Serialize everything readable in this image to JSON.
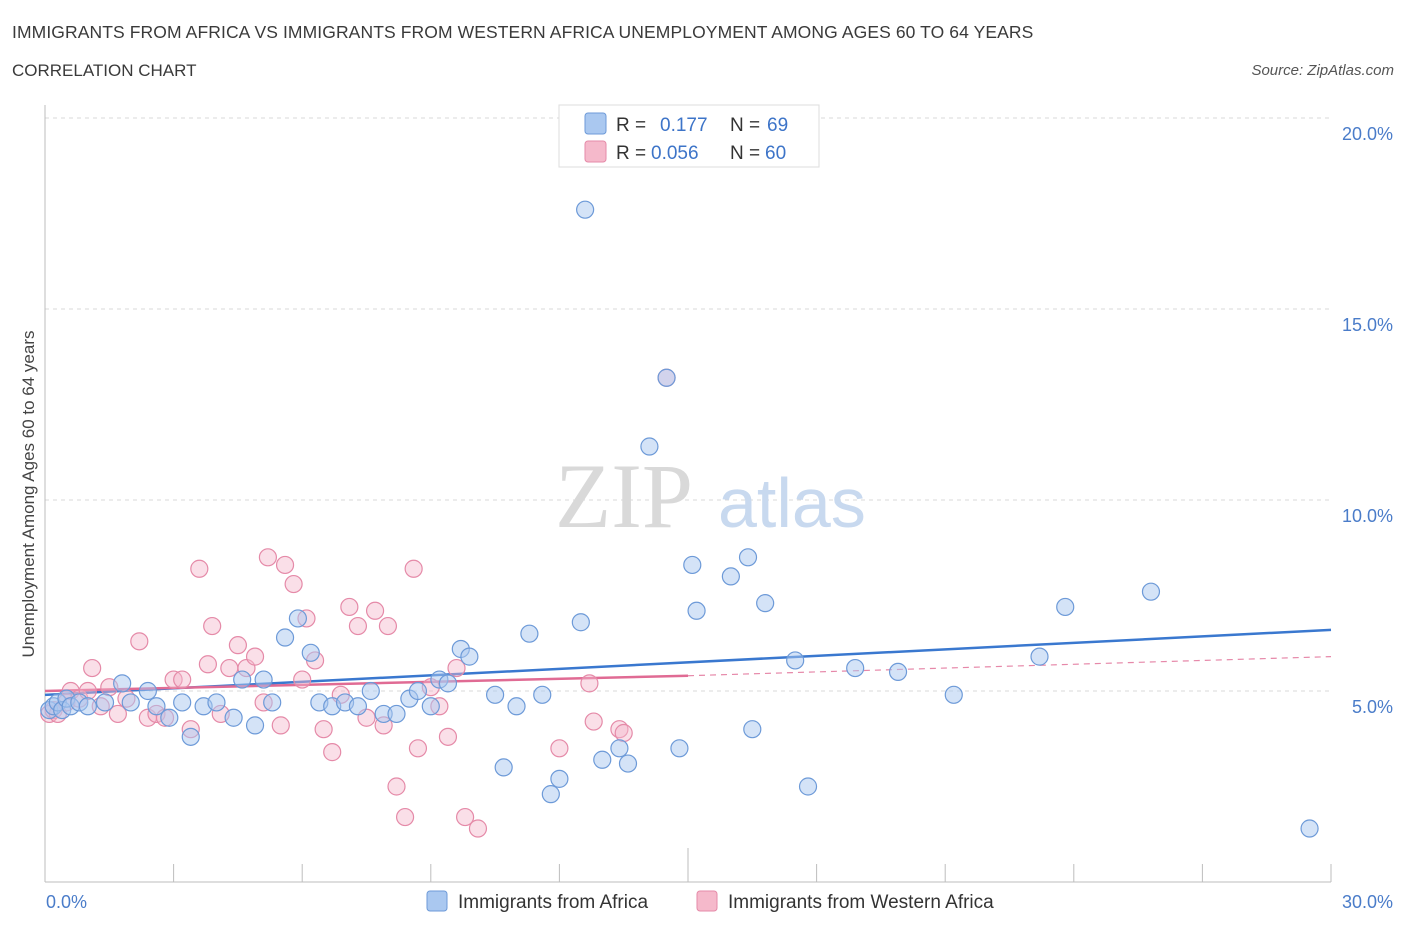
{
  "header": {
    "title": "IMMIGRANTS FROM AFRICA VS IMMIGRANTS FROM WESTERN AFRICA UNEMPLOYMENT AMONG AGES 60 TO 64 YEARS",
    "subtitle": "CORRELATION CHART",
    "source": "Source: ZipAtlas.com"
  },
  "watermark": {
    "zip": "ZIP",
    "atlas": "atlas"
  },
  "legend": {
    "r_label": "R =",
    "n_label": "N =",
    "rows": [
      {
        "r": "0.177",
        "n": "69"
      },
      {
        "r": "0.056",
        "n": "60"
      }
    ]
  },
  "bottom_legend": {
    "series1": "Immigrants from Africa",
    "series2": "Immigrants from Western Africa"
  },
  "colors": {
    "series1_fill": "#aac8f0",
    "series1_stroke": "#6d9ad8",
    "series1_line": "#3a78cf",
    "series2_fill": "#f5b9cb",
    "series2_stroke": "#e58aa8",
    "series2_line": "#e06b94",
    "tick_text": "#4a7cc9",
    "grid": "#d8d8d8"
  },
  "chart_data": {
    "type": "scatter",
    "xlabel": "",
    "ylabel": "Unemployment Among Ages 60 to 64 years",
    "xlim": [
      0,
      30
    ],
    "ylim": [
      0,
      20
    ],
    "x_tick_labels": [
      "0.0%",
      "30.0%"
    ],
    "y_ticks": [
      5,
      10,
      15,
      20
    ],
    "y_tick_labels": [
      "5.0%",
      "10.0%",
      "15.0%",
      "20.0%"
    ],
    "grid": "horizontal dashed",
    "legend_position": "top-center",
    "series": [
      {
        "name": "Immigrants from Africa",
        "r": 0.177,
        "n": 69,
        "trend": {
          "x": [
            0,
            30
          ],
          "y": [
            4.9,
            6.6
          ]
        },
        "points": [
          [
            0.1,
            4.5
          ],
          [
            0.2,
            4.6
          ],
          [
            0.3,
            4.7
          ],
          [
            0.4,
            4.5
          ],
          [
            0.5,
            4.8
          ],
          [
            0.6,
            4.6
          ],
          [
            0.8,
            4.7
          ],
          [
            1.0,
            4.6
          ],
          [
            1.4,
            4.7
          ],
          [
            1.8,
            5.2
          ],
          [
            2.0,
            4.7
          ],
          [
            2.4,
            5.0
          ],
          [
            2.6,
            4.6
          ],
          [
            2.9,
            4.3
          ],
          [
            3.2,
            4.7
          ],
          [
            3.4,
            3.8
          ],
          [
            3.7,
            4.6
          ],
          [
            4.0,
            4.7
          ],
          [
            4.4,
            4.3
          ],
          [
            4.6,
            5.3
          ],
          [
            4.9,
            4.1
          ],
          [
            5.1,
            5.3
          ],
          [
            5.3,
            4.7
          ],
          [
            5.6,
            6.4
          ],
          [
            5.9,
            6.9
          ],
          [
            6.2,
            6.0
          ],
          [
            6.4,
            4.7
          ],
          [
            6.7,
            4.6
          ],
          [
            7.0,
            4.7
          ],
          [
            7.3,
            4.6
          ],
          [
            7.6,
            5.0
          ],
          [
            7.9,
            4.4
          ],
          [
            8.2,
            4.4
          ],
          [
            8.5,
            4.8
          ],
          [
            8.7,
            5.0
          ],
          [
            9.0,
            4.6
          ],
          [
            9.2,
            5.3
          ],
          [
            9.4,
            5.2
          ],
          [
            9.7,
            6.1
          ],
          [
            9.9,
            5.9
          ],
          [
            10.5,
            4.9
          ],
          [
            10.7,
            3.0
          ],
          [
            11.0,
            4.6
          ],
          [
            11.3,
            6.5
          ],
          [
            11.6,
            4.9
          ],
          [
            11.8,
            2.3
          ],
          [
            12.0,
            2.7
          ],
          [
            12.5,
            6.8
          ],
          [
            12.6,
            17.6
          ],
          [
            13.0,
            3.2
          ],
          [
            13.4,
            3.5
          ],
          [
            13.6,
            3.1
          ],
          [
            14.1,
            11.4
          ],
          [
            14.5,
            13.2
          ],
          [
            14.8,
            3.5
          ],
          [
            15.1,
            8.3
          ],
          [
            15.2,
            7.1
          ],
          [
            16.0,
            8.0
          ],
          [
            16.4,
            8.5
          ],
          [
            16.5,
            4.0
          ],
          [
            16.8,
            7.3
          ],
          [
            17.5,
            5.8
          ],
          [
            17.8,
            2.5
          ],
          [
            18.9,
            5.6
          ],
          [
            19.9,
            5.5
          ],
          [
            21.2,
            4.9
          ],
          [
            23.2,
            5.9
          ],
          [
            23.8,
            7.2
          ],
          [
            25.8,
            7.6
          ],
          [
            29.5,
            1.4
          ]
        ]
      },
      {
        "name": "Immigrants from Western Africa",
        "r": 0.056,
        "n": 60,
        "trend": {
          "x": [
            0,
            15
          ],
          "y": [
            5.0,
            5.4
          ]
        },
        "trend_extension": {
          "x": [
            15,
            30
          ],
          "y": [
            5.4,
            5.9
          ]
        },
        "points": [
          [
            0.1,
            4.4
          ],
          [
            0.2,
            4.5
          ],
          [
            0.3,
            4.4
          ],
          [
            0.5,
            4.7
          ],
          [
            0.6,
            5.0
          ],
          [
            0.8,
            4.8
          ],
          [
            1.0,
            5.0
          ],
          [
            1.1,
            5.6
          ],
          [
            1.3,
            4.6
          ],
          [
            1.5,
            5.1
          ],
          [
            1.7,
            4.4
          ],
          [
            1.9,
            4.8
          ],
          [
            2.2,
            6.3
          ],
          [
            2.4,
            4.3
          ],
          [
            2.6,
            4.4
          ],
          [
            2.8,
            4.3
          ],
          [
            3.0,
            5.3
          ],
          [
            3.2,
            5.3
          ],
          [
            3.4,
            4.0
          ],
          [
            3.6,
            8.2
          ],
          [
            3.8,
            5.7
          ],
          [
            3.9,
            6.7
          ],
          [
            4.1,
            4.4
          ],
          [
            4.3,
            5.6
          ],
          [
            4.5,
            6.2
          ],
          [
            4.7,
            5.6
          ],
          [
            4.9,
            5.9
          ],
          [
            5.1,
            4.7
          ],
          [
            5.2,
            8.5
          ],
          [
            5.5,
            4.1
          ],
          [
            5.6,
            8.3
          ],
          [
            5.8,
            7.8
          ],
          [
            6.0,
            5.3
          ],
          [
            6.1,
            6.9
          ],
          [
            6.3,
            5.8
          ],
          [
            6.5,
            4.0
          ],
          [
            6.7,
            3.4
          ],
          [
            6.9,
            4.9
          ],
          [
            7.1,
            7.2
          ],
          [
            7.3,
            6.7
          ],
          [
            7.5,
            4.3
          ],
          [
            7.7,
            7.1
          ],
          [
            7.9,
            4.1
          ],
          [
            8.0,
            6.7
          ],
          [
            8.2,
            2.5
          ],
          [
            8.4,
            1.7
          ],
          [
            8.6,
            8.2
          ],
          [
            8.7,
            3.5
          ],
          [
            9.0,
            5.1
          ],
          [
            9.2,
            4.6
          ],
          [
            9.4,
            3.8
          ],
          [
            9.6,
            5.6
          ],
          [
            9.8,
            1.7
          ],
          [
            10.1,
            1.4
          ],
          [
            12.0,
            3.5
          ],
          [
            12.7,
            5.2
          ],
          [
            12.8,
            4.2
          ],
          [
            13.4,
            4.0
          ],
          [
            13.5,
            3.9
          ],
          [
            14.5,
            13.2
          ]
        ]
      }
    ]
  }
}
